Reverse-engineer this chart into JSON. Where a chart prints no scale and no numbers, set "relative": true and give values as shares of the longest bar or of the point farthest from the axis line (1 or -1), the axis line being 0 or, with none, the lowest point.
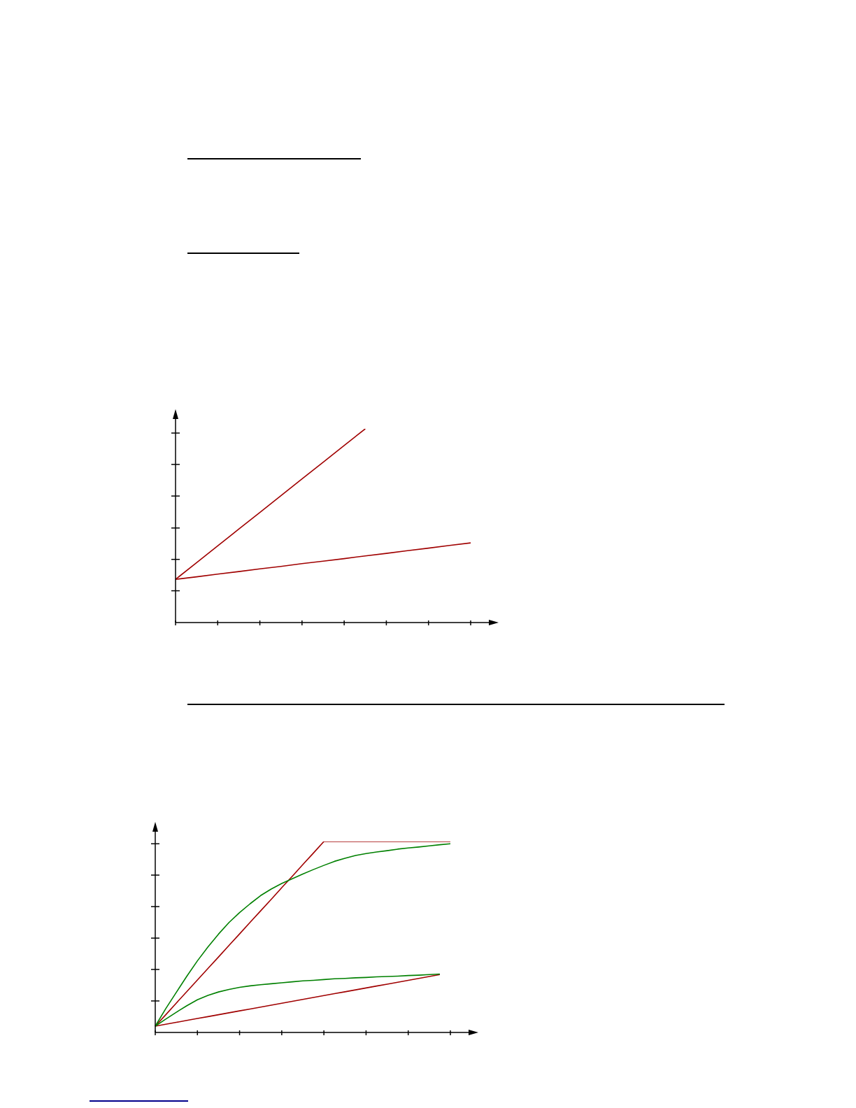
{
  "chart_data": [
    {
      "type": "line",
      "relative": true,
      "categories": [
        null,
        null,
        null,
        null,
        null,
        null,
        null,
        null,
        null,
        null,
        null,
        null,
        null,
        null,
        null
      ],
      "series": [
        {
          "color": "#a00000",
          "values": [
            0.223,
            0.309,
            0.396,
            0.482,
            0.568,
            0.655,
            0.741,
            0.827,
            0.914,
            1.0,
            null,
            null,
            null,
            null,
            null
          ]
        },
        {
          "color": "#a00000",
          "values": [
            0.223,
            0.236,
            0.25,
            0.263,
            0.277,
            0.29,
            0.304,
            0.317,
            0.33,
            0.344,
            0.357,
            0.371,
            0.384,
            0.398,
            0.411
          ]
        }
      ]
    },
    {
      "type": "line",
      "relative": true,
      "categories": [
        null,
        null,
        null,
        null,
        null,
        null,
        null,
        null,
        null,
        null,
        null,
        null,
        null,
        null,
        null,
        null,
        null,
        null,
        null,
        null,
        null,
        null,
        null,
        null,
        null,
        null,
        null,
        null,
        null
      ],
      "series": [
        {
          "color": "#a00000",
          "values": [
            0.033,
            0.093,
            0.154,
            0.214,
            0.275,
            0.335,
            0.395,
            0.456,
            0.516,
            0.577,
            0.637,
            0.697,
            0.758,
            0.818,
            0.879,
            0.939,
            1.0,
            1.0,
            1.0,
            1.0,
            1.0,
            1.0,
            1.0,
            1.0,
            1.0,
            1.0,
            1.0,
            1.0,
            1.0
          ]
        },
        {
          "color": "#008000",
          "values": [
            0.033,
            0.125,
            0.21,
            0.295,
            0.375,
            0.448,
            0.515,
            0.576,
            0.628,
            0.674,
            0.717,
            0.751,
            0.78,
            0.805,
            0.83,
            0.853,
            0.875,
            0.896,
            0.912,
            0.927,
            0.937,
            0.945,
            0.952,
            0.96,
            0.966,
            0.971,
            0.977,
            0.983,
            0.988
          ]
        },
        {
          "color": "#a00000",
          "values": [
            0.033,
            0.043,
            0.053,
            0.063,
            0.073,
            0.083,
            0.093,
            0.103,
            0.113,
            0.123,
            0.133,
            0.143,
            0.153,
            0.163,
            0.173,
            0.183,
            0.193,
            0.203,
            0.213,
            0.223,
            0.233,
            0.243,
            0.253,
            0.263,
            0.273,
            0.283,
            0.293,
            0.303,
            null
          ]
        },
        {
          "color": "#008000",
          "values": [
            0.033,
            0.07,
            0.106,
            0.14,
            0.171,
            0.194,
            0.212,
            0.225,
            0.236,
            0.244,
            0.25,
            0.255,
            0.26,
            0.265,
            0.27,
            0.273,
            0.277,
            0.281,
            0.283,
            0.286,
            0.288,
            0.291,
            0.293,
            0.295,
            0.298,
            0.3,
            0.303,
            0.306,
            null
          ]
        }
      ]
    }
  ]
}
